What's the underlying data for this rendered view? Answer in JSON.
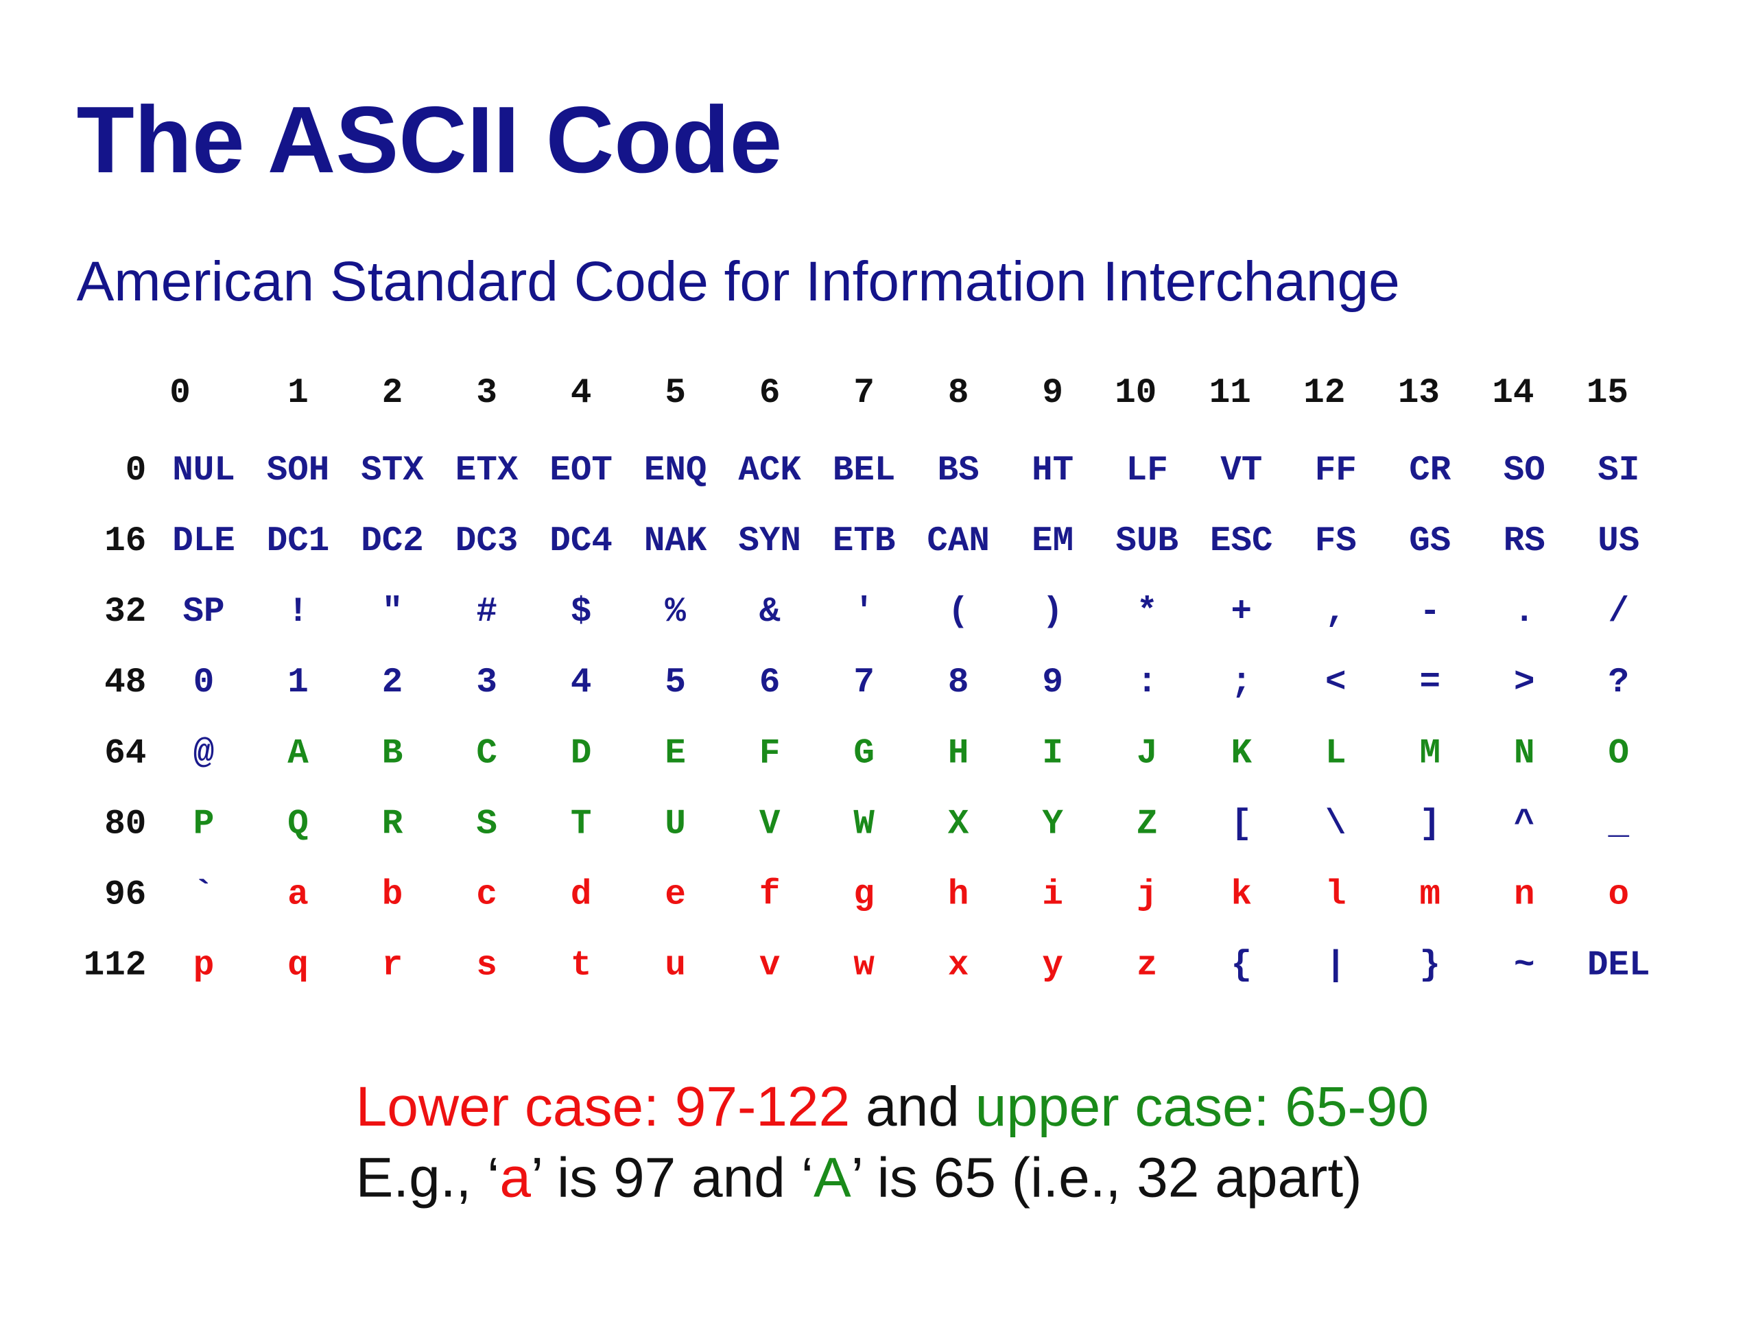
{
  "title": "The ASCII Code",
  "subtitle": "American Standard Code for Information Interchange",
  "table": {
    "column_headers": [
      0,
      1,
      2,
      3,
      4,
      5,
      6,
      7,
      8,
      9,
      10,
      11,
      12,
      13,
      14,
      15
    ],
    "rows": [
      {
        "label": 0,
        "cells": [
          {
            "text": "NUL",
            "color": "#1a1a8c"
          },
          {
            "text": "SOH",
            "color": "#1a1a8c"
          },
          {
            "text": "STX",
            "color": "#1a1a8c"
          },
          {
            "text": "ETX",
            "color": "#1a1a8c"
          },
          {
            "text": "EOT",
            "color": "#1a1a8c"
          },
          {
            "text": "ENQ",
            "color": "#1a1a8c"
          },
          {
            "text": "ACK",
            "color": "#1a1a8c"
          },
          {
            "text": "BEL",
            "color": "#1a1a8c"
          },
          {
            "text": "BS",
            "color": "#1a1a8c"
          },
          {
            "text": "HT",
            "color": "#1a1a8c"
          },
          {
            "text": "LF",
            "color": "#1a1a8c"
          },
          {
            "text": "VT",
            "color": "#1a1a8c"
          },
          {
            "text": "FF",
            "color": "#1a1a8c"
          },
          {
            "text": "CR",
            "color": "#1a1a8c"
          },
          {
            "text": "SO",
            "color": "#1a1a8c"
          },
          {
            "text": "SI",
            "color": "#1a1a8c"
          }
        ]
      },
      {
        "label": 16,
        "cells": [
          {
            "text": "DLE",
            "color": "#1a1a8c"
          },
          {
            "text": "DC1",
            "color": "#1a1a8c"
          },
          {
            "text": "DC2",
            "color": "#1a1a8c"
          },
          {
            "text": "DC3",
            "color": "#1a1a8c"
          },
          {
            "text": "DC4",
            "color": "#1a1a8c"
          },
          {
            "text": "NAK",
            "color": "#1a1a8c"
          },
          {
            "text": "SYN",
            "color": "#1a1a8c"
          },
          {
            "text": "ETB",
            "color": "#1a1a8c"
          },
          {
            "text": "CAN",
            "color": "#1a1a8c"
          },
          {
            "text": "EM",
            "color": "#1a1a8c"
          },
          {
            "text": "SUB",
            "color": "#1a1a8c"
          },
          {
            "text": "ESC",
            "color": "#1a1a8c"
          },
          {
            "text": "FS",
            "color": "#1a1a8c"
          },
          {
            "text": "GS",
            "color": "#1a1a8c"
          },
          {
            "text": "RS",
            "color": "#1a1a8c"
          },
          {
            "text": "US",
            "color": "#1a1a8c"
          }
        ]
      },
      {
        "label": 32,
        "cells": [
          {
            "text": "SP",
            "color": "#1a1a8c"
          },
          {
            "text": "!",
            "color": "#1a1a8c"
          },
          {
            "text": "\"",
            "color": "#1a1a8c"
          },
          {
            "text": "#",
            "color": "#1a1a8c"
          },
          {
            "text": "$",
            "color": "#1a1a8c"
          },
          {
            "text": "%",
            "color": "#1a1a8c"
          },
          {
            "text": "&",
            "color": "#1a1a8c"
          },
          {
            "text": "'",
            "color": "#1a1a8c"
          },
          {
            "text": "(",
            "color": "#1a1a8c"
          },
          {
            "text": ")",
            "color": "#1a1a8c"
          },
          {
            "text": "*",
            "color": "#1a1a8c"
          },
          {
            "text": "+",
            "color": "#1a1a8c"
          },
          {
            "text": ",",
            "color": "#1a1a8c"
          },
          {
            "text": "-",
            "color": "#1a1a8c"
          },
          {
            "text": ".",
            "color": "#1a1a8c"
          },
          {
            "text": "/",
            "color": "#1a1a8c"
          }
        ]
      },
      {
        "label": 48,
        "cells": [
          {
            "text": "0",
            "color": "#1a1a8c"
          },
          {
            "text": "1",
            "color": "#1a1a8c"
          },
          {
            "text": "2",
            "color": "#1a1a8c"
          },
          {
            "text": "3",
            "color": "#1a1a8c"
          },
          {
            "text": "4",
            "color": "#1a1a8c"
          },
          {
            "text": "5",
            "color": "#1a1a8c"
          },
          {
            "text": "6",
            "color": "#1a1a8c"
          },
          {
            "text": "7",
            "color": "#1a1a8c"
          },
          {
            "text": "8",
            "color": "#1a1a8c"
          },
          {
            "text": "9",
            "color": "#1a1a8c"
          },
          {
            "text": ":",
            "color": "#1a1a8c"
          },
          {
            "text": ";",
            "color": "#1a1a8c"
          },
          {
            "text": "<",
            "color": "#1a1a8c"
          },
          {
            "text": "=",
            "color": "#1a1a8c"
          },
          {
            "text": ">",
            "color": "#1a1a8c"
          },
          {
            "text": "?",
            "color": "#1a1a8c"
          }
        ]
      },
      {
        "label": 64,
        "cells": [
          {
            "text": "@",
            "color": "#1a1a8c"
          },
          {
            "text": "A",
            "color": "#1a8a1a"
          },
          {
            "text": "B",
            "color": "#1a8a1a"
          },
          {
            "text": "C",
            "color": "#1a8a1a"
          },
          {
            "text": "D",
            "color": "#1a8a1a"
          },
          {
            "text": "E",
            "color": "#1a8a1a"
          },
          {
            "text": "F",
            "color": "#1a8a1a"
          },
          {
            "text": "G",
            "color": "#1a8a1a"
          },
          {
            "text": "H",
            "color": "#1a8a1a"
          },
          {
            "text": "I",
            "color": "#1a8a1a"
          },
          {
            "text": "J",
            "color": "#1a8a1a"
          },
          {
            "text": "K",
            "color": "#1a8a1a"
          },
          {
            "text": "L",
            "color": "#1a8a1a"
          },
          {
            "text": "M",
            "color": "#1a8a1a"
          },
          {
            "text": "N",
            "color": "#1a8a1a"
          },
          {
            "text": "O",
            "color": "#1a8a1a"
          }
        ]
      },
      {
        "label": 80,
        "cells": [
          {
            "text": "P",
            "color": "#1a8a1a"
          },
          {
            "text": "Q",
            "color": "#1a8a1a"
          },
          {
            "text": "R",
            "color": "#1a8a1a"
          },
          {
            "text": "S",
            "color": "#1a8a1a"
          },
          {
            "text": "T",
            "color": "#1a8a1a"
          },
          {
            "text": "U",
            "color": "#1a8a1a"
          },
          {
            "text": "V",
            "color": "#1a8a1a"
          },
          {
            "text": "W",
            "color": "#1a8a1a"
          },
          {
            "text": "X",
            "color": "#1a8a1a"
          },
          {
            "text": "Y",
            "color": "#1a8a1a"
          },
          {
            "text": "Z",
            "color": "#1a8a1a"
          },
          {
            "text": "[",
            "color": "#1a1a8c"
          },
          {
            "text": "\\",
            "color": "#1a1a8c"
          },
          {
            "text": "]",
            "color": "#1a1a8c"
          },
          {
            "text": "^",
            "color": "#1a1a8c"
          },
          {
            "text": "_",
            "color": "#1a1a8c"
          }
        ]
      },
      {
        "label": 96,
        "cells": [
          {
            "text": "`",
            "color": "#1a1a8c"
          },
          {
            "text": "a",
            "color": "#ee1111"
          },
          {
            "text": "b",
            "color": "#ee1111"
          },
          {
            "text": "c",
            "color": "#ee1111"
          },
          {
            "text": "d",
            "color": "#ee1111"
          },
          {
            "text": "e",
            "color": "#ee1111"
          },
          {
            "text": "f",
            "color": "#ee1111"
          },
          {
            "text": "g",
            "color": "#ee1111"
          },
          {
            "text": "h",
            "color": "#ee1111"
          },
          {
            "text": "i",
            "color": "#ee1111"
          },
          {
            "text": "j",
            "color": "#ee1111"
          },
          {
            "text": "k",
            "color": "#ee1111"
          },
          {
            "text": "l",
            "color": "#ee1111"
          },
          {
            "text": "m",
            "color": "#ee1111"
          },
          {
            "text": "n",
            "color": "#ee1111"
          },
          {
            "text": "o",
            "color": "#ee1111"
          }
        ]
      },
      {
        "label": 112,
        "cells": [
          {
            "text": "p",
            "color": "#ee1111"
          },
          {
            "text": "q",
            "color": "#ee1111"
          },
          {
            "text": "r",
            "color": "#ee1111"
          },
          {
            "text": "s",
            "color": "#ee1111"
          },
          {
            "text": "t",
            "color": "#ee1111"
          },
          {
            "text": "u",
            "color": "#ee1111"
          },
          {
            "text": "v",
            "color": "#ee1111"
          },
          {
            "text": "w",
            "color": "#ee1111"
          },
          {
            "text": "x",
            "color": "#ee1111"
          },
          {
            "text": "y",
            "color": "#ee1111"
          },
          {
            "text": "z",
            "color": "#ee1111"
          },
          {
            "text": "{",
            "color": "#1a1a8c"
          },
          {
            "text": "|",
            "color": "#1a1a8c"
          },
          {
            "text": "}",
            "color": "#1a1a8c"
          },
          {
            "text": "~",
            "color": "#1a1a8c"
          },
          {
            "text": "DEL",
            "color": "#1a1a8c"
          }
        ]
      }
    ]
  },
  "footer": [
    [
      {
        "text": "Lower case: 97-122",
        "color": "#ee1111"
      },
      {
        "text": " and ",
        "color": "#111111"
      },
      {
        "text": "upper case: 65-90",
        "color": "#1a8a1a"
      }
    ],
    [
      {
        "text": "E.g., ‘",
        "color": "#111111"
      },
      {
        "text": "a",
        "color": "#ee1111"
      },
      {
        "text": "’ is 97 and ‘",
        "color": "#111111"
      },
      {
        "text": "A",
        "color": "#1a8a1a"
      },
      {
        "text": "’ is 65 (i.e., 32 apart)",
        "color": "#111111"
      }
    ]
  ]
}
